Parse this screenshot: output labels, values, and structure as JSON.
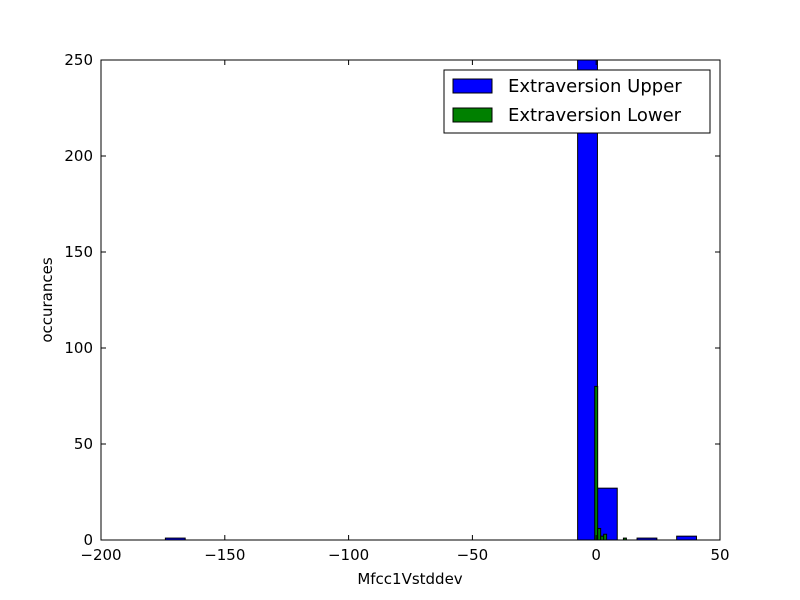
{
  "chart_data": {
    "type": "bar",
    "title": "",
    "xlabel": "Mfcc1Vstddev",
    "ylabel": "occurances",
    "xlim": [
      -200,
      50
    ],
    "ylim": [
      0,
      250
    ],
    "xticks": [
      -200,
      -150,
      -100,
      -50,
      0,
      50
    ],
    "yticks": [
      0,
      50,
      100,
      150,
      200,
      250
    ],
    "xtick_labels": [
      "−200",
      "−150",
      "−100",
      "−50",
      "0",
      "50"
    ],
    "ytick_labels": [
      "0",
      "50",
      "100",
      "150",
      "200",
      "250"
    ],
    "legend_position": "top-right",
    "grid": false,
    "series": [
      {
        "name": "Extraversion Upper",
        "color": "#0000ff",
        "bins": [
          {
            "x0": -174,
            "x1": -166,
            "count": 1
          },
          {
            "x0": -7.5,
            "x1": 0.5,
            "count": 250
          },
          {
            "x0": 0.5,
            "x1": 8.5,
            "count": 27
          },
          {
            "x0": 16.5,
            "x1": 24.5,
            "count": 1
          },
          {
            "x0": 32.5,
            "x1": 40.5,
            "count": 2
          }
        ]
      },
      {
        "name": "Extraversion Lower",
        "color": "#008000",
        "bins": [
          {
            "x0": -0.6,
            "x1": 0.6,
            "count": 80
          },
          {
            "x0": 0.6,
            "x1": 1.8,
            "count": 6
          },
          {
            "x0": 1.8,
            "x1": 3.0,
            "count": 2
          },
          {
            "x0": 3.0,
            "x1": 4.2,
            "count": 3
          },
          {
            "x0": 11.0,
            "x1": 12.2,
            "count": 1
          }
        ]
      }
    ]
  }
}
